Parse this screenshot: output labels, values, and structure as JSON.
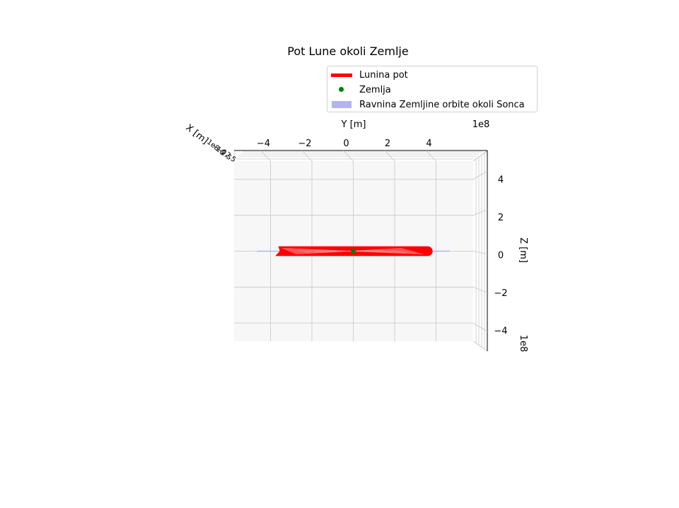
{
  "chart_data": {
    "type": "line",
    "projection": "3d",
    "title": "Pot Lune okoli Zemlje",
    "xlabel": "X [m]",
    "ylabel": "Y [m]",
    "zlabel": "Z [m]",
    "y_offset_label": "1e8",
    "z_offset_label": "1e8",
    "y_ticks": [
      "−4",
      "−2",
      "0",
      "2",
      "4"
    ],
    "y_tick_values": [
      -4,
      -2,
      0,
      2,
      4
    ],
    "z_ticks": [
      "4",
      "2",
      "0",
      "−2",
      "−4"
    ],
    "z_tick_values": [
      4,
      2,
      0,
      -2,
      -4
    ],
    "ylim": [
      -5,
      5
    ],
    "zlim": [
      -5,
      5
    ],
    "grid": true,
    "legend_position": "upper-right",
    "series": [
      {
        "name": "Lunina pot",
        "kind": "line",
        "color": "#ff0000",
        "y_range": [
          -3.6,
          3.6
        ],
        "z_range": [
          -0.25,
          0.25
        ]
      },
      {
        "name": "Zemlja",
        "kind": "point",
        "color": "#008000",
        "y": 0,
        "z": 0
      },
      {
        "name": "Ravnina Zemljine orbite okoli Sonca",
        "kind": "plane",
        "color": "#b4b4ee",
        "y_range": [
          -5,
          5
        ],
        "z": 0
      }
    ]
  }
}
